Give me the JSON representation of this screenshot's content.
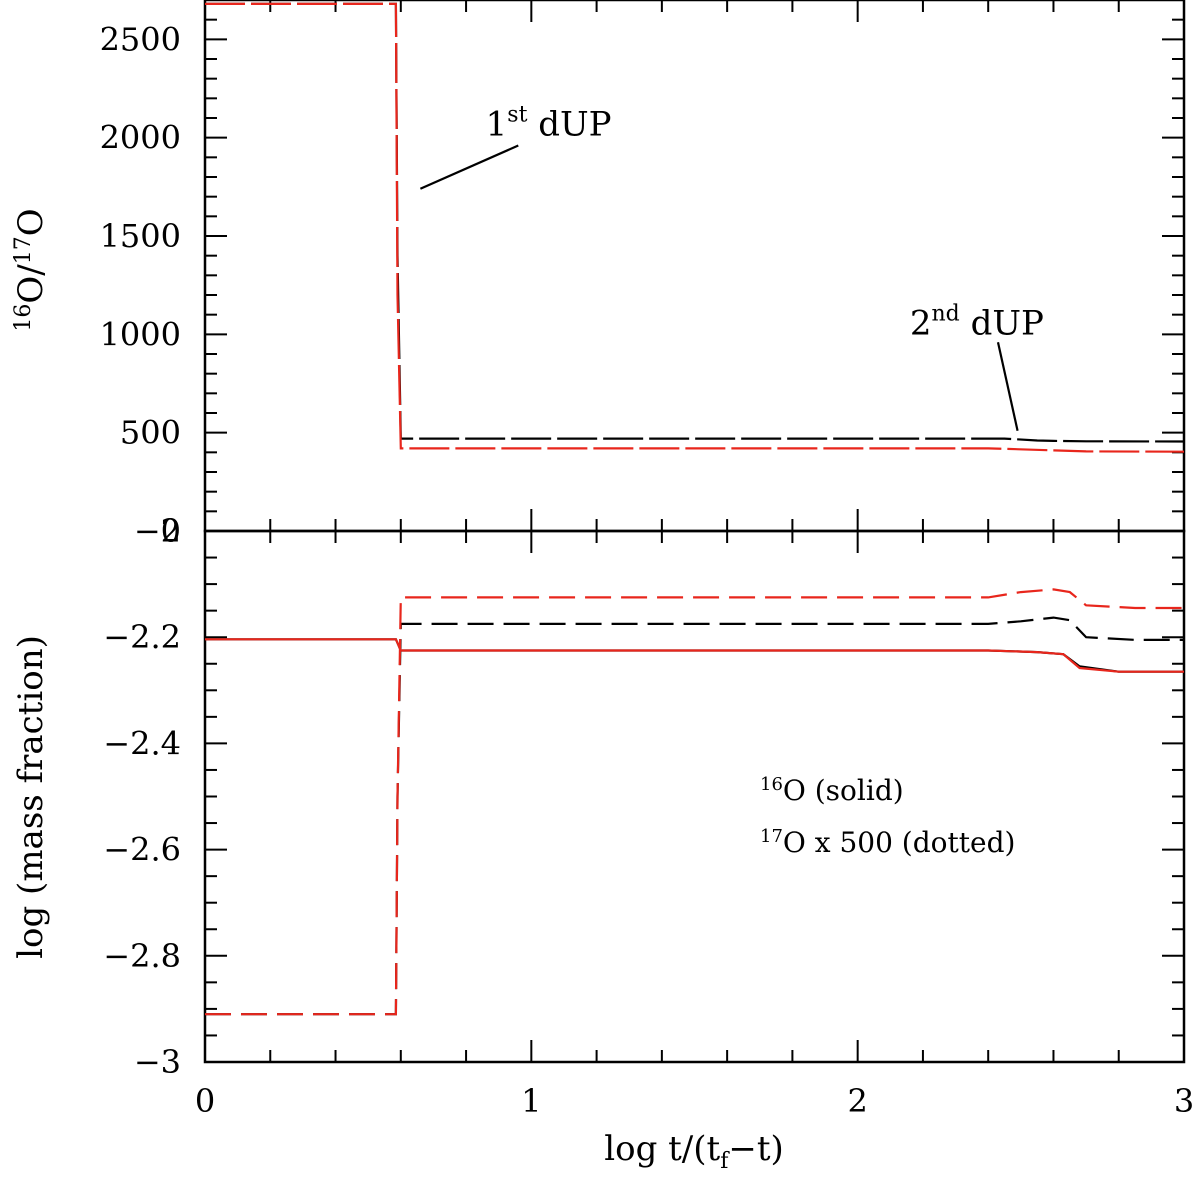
{
  "chart_data": [
    {
      "type": "line",
      "panel": "top",
      "ylabel_parts": [
        "16",
        "O/",
        "17",
        "O"
      ],
      "xlim": [
        0,
        3
      ],
      "ylim": [
        0,
        2700
      ],
      "yticks": [
        0,
        500,
        1000,
        1500,
        2000,
        2500
      ],
      "ytick_labels": [
        "0",
        "500",
        "1000",
        "1500",
        "2000",
        "2500"
      ],
      "colors": {
        "black": "#000000",
        "red": "#e8261c"
      },
      "series": [
        {
          "color": "#000000",
          "x": [
            0,
            0.585,
            0.59,
            0.6,
            1.0,
            1.5,
            2.0,
            2.45,
            2.55,
            2.6,
            2.7,
            3.0
          ],
          "y": [
            2680,
            2680,
            1400,
            470,
            470,
            470,
            470,
            470,
            460,
            458,
            456,
            455
          ]
        },
        {
          "color": "#e8261c",
          "x": [
            0,
            0.585,
            0.59,
            0.6,
            1.0,
            1.5,
            2.0,
            2.4,
            2.45,
            2.6,
            2.7,
            3.0
          ],
          "y": [
            2680,
            2680,
            1200,
            420,
            420,
            420,
            420,
            420,
            418,
            410,
            405,
            403
          ]
        }
      ],
      "annotations": [
        {
          "base": "1",
          "sup": "st",
          "rest": " dUP",
          "x": 0.86,
          "y": 2010,
          "arrow_from": [
            0.96,
            1960
          ],
          "arrow_to": [
            0.66,
            1740
          ]
        },
        {
          "base": "2",
          "sup": "nd",
          "rest": " dUP",
          "x": 2.16,
          "y": 1000,
          "arrow_from": [
            2.43,
            960
          ],
          "arrow_to": [
            2.49,
            510
          ]
        }
      ]
    },
    {
      "type": "line",
      "panel": "bottom",
      "xlabel_parts": [
        "log  t/(t",
        "f",
        "−t)"
      ],
      "ylabel": "log (mass fraction)",
      "xlim": [
        0,
        3
      ],
      "ylim": [
        -3,
        -2
      ],
      "xticks": [
        0,
        1,
        2,
        3
      ],
      "xtick_labels": [
        "0",
        "1",
        "2",
        "3"
      ],
      "yticks": [
        -3,
        -2.8,
        -2.6,
        -2.4,
        -2.2,
        -2
      ],
      "ytick_labels": [
        "−3",
        "−2.8",
        "−2.6",
        "−2.4",
        "−2.2",
        "−2"
      ],
      "series": [
        {
          "color": "#000000",
          "style": "solid",
          "x": [
            0,
            0.585,
            0.6,
            2.4,
            2.55,
            2.63,
            2.68,
            2.8,
            3.0
          ],
          "y": [
            -2.204,
            -2.204,
            -2.225,
            -2.225,
            -2.228,
            -2.232,
            -2.255,
            -2.265,
            -2.265
          ]
        },
        {
          "color": "#000000",
          "style": "dashed",
          "x": [
            0,
            0.585,
            0.59,
            0.6,
            2.4,
            2.5,
            2.6,
            2.65,
            2.7,
            2.85,
            3.0
          ],
          "y": [
            -2.91,
            -2.91,
            -2.5,
            -2.175,
            -2.175,
            -2.17,
            -2.163,
            -2.168,
            -2.2,
            -2.205,
            -2.205
          ]
        },
        {
          "color": "#e8261c",
          "style": "solid",
          "x": [
            0,
            0.585,
            0.6,
            2.4,
            2.55,
            2.63,
            2.68,
            2.8,
            3.0
          ],
          "y": [
            -2.204,
            -2.204,
            -2.225,
            -2.225,
            -2.228,
            -2.232,
            -2.258,
            -2.265,
            -2.265
          ]
        },
        {
          "color": "#e8261c",
          "style": "dashed",
          "x": [
            0,
            0.585,
            0.59,
            0.6,
            2.4,
            2.5,
            2.6,
            2.65,
            2.7,
            2.85,
            3.0
          ],
          "y": [
            -2.91,
            -2.91,
            -2.5,
            -2.125,
            -2.125,
            -2.115,
            -2.11,
            -2.115,
            -2.14,
            -2.145,
            -2.145
          ]
        }
      ],
      "legend": [
        {
          "sup": "16",
          "text": "O (solid)"
        },
        {
          "sup": "17",
          "text": "O x 500 (dotted)"
        }
      ]
    }
  ]
}
